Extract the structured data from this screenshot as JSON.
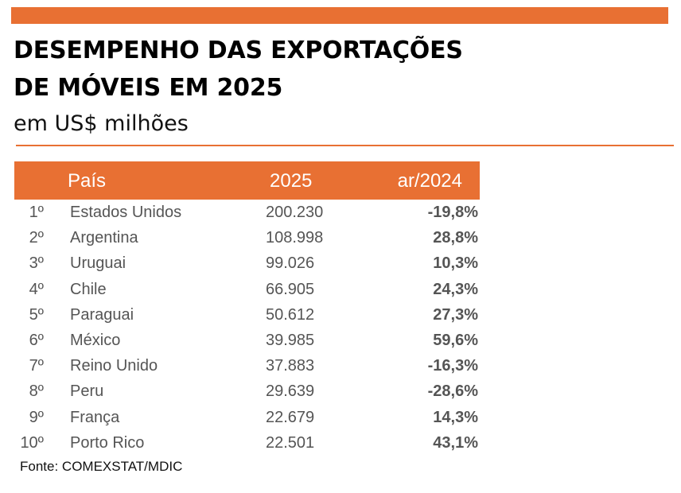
{
  "title_line1": "DESEMPENHO DAS EXPORTAÇÕES",
  "title_line2": "DE MÓVEIS EM 2025",
  "subtitle": "em US$ milhões",
  "colors": {
    "accent": "#E87033",
    "row_text": "#555555"
  },
  "source": "Fonte: COMEXSTAT/MDIC",
  "chart_data": {
    "type": "table",
    "title": "DESEMPENHO DAS EXPORTAÇÕES DE MÓVEIS EM 2025",
    "subtitle": "em US$ milhões",
    "columns": [
      "",
      "País",
      "2025",
      "ar/2024"
    ],
    "rows": [
      {
        "rank": "1º",
        "country": "Estados Unidos",
        "value": "200.230",
        "var": "-19,8%"
      },
      {
        "rank": "2º",
        "country": "Argentina",
        "value": "108.998",
        "var": "28,8%"
      },
      {
        "rank": "3º",
        "country": "Uruguai",
        "value": "99.026",
        "var": "10,3%"
      },
      {
        "rank": "4º",
        "country": "Chile",
        "value": "66.905",
        "var": "24,3%"
      },
      {
        "rank": "5º",
        "country": "Paraguai",
        "value": "50.612",
        "var": "27,3%"
      },
      {
        "rank": "6º",
        "country": "México",
        "value": "39.985",
        "var": "59,6%"
      },
      {
        "rank": "7º",
        "country": "Reino Unido",
        "value": "37.883",
        "var": "-16,3%"
      },
      {
        "rank": "8º",
        "country": "Peru",
        "value": "29.639",
        "var": "-28,6%"
      },
      {
        "rank": "9º",
        "country": "França",
        "value": "22.679",
        "var": "14,3%"
      },
      {
        "rank": "10º",
        "country": "Porto Rico",
        "value": "22.501",
        "var": "43,1%"
      }
    ],
    "source": "Fonte: COMEXSTAT/MDIC"
  }
}
